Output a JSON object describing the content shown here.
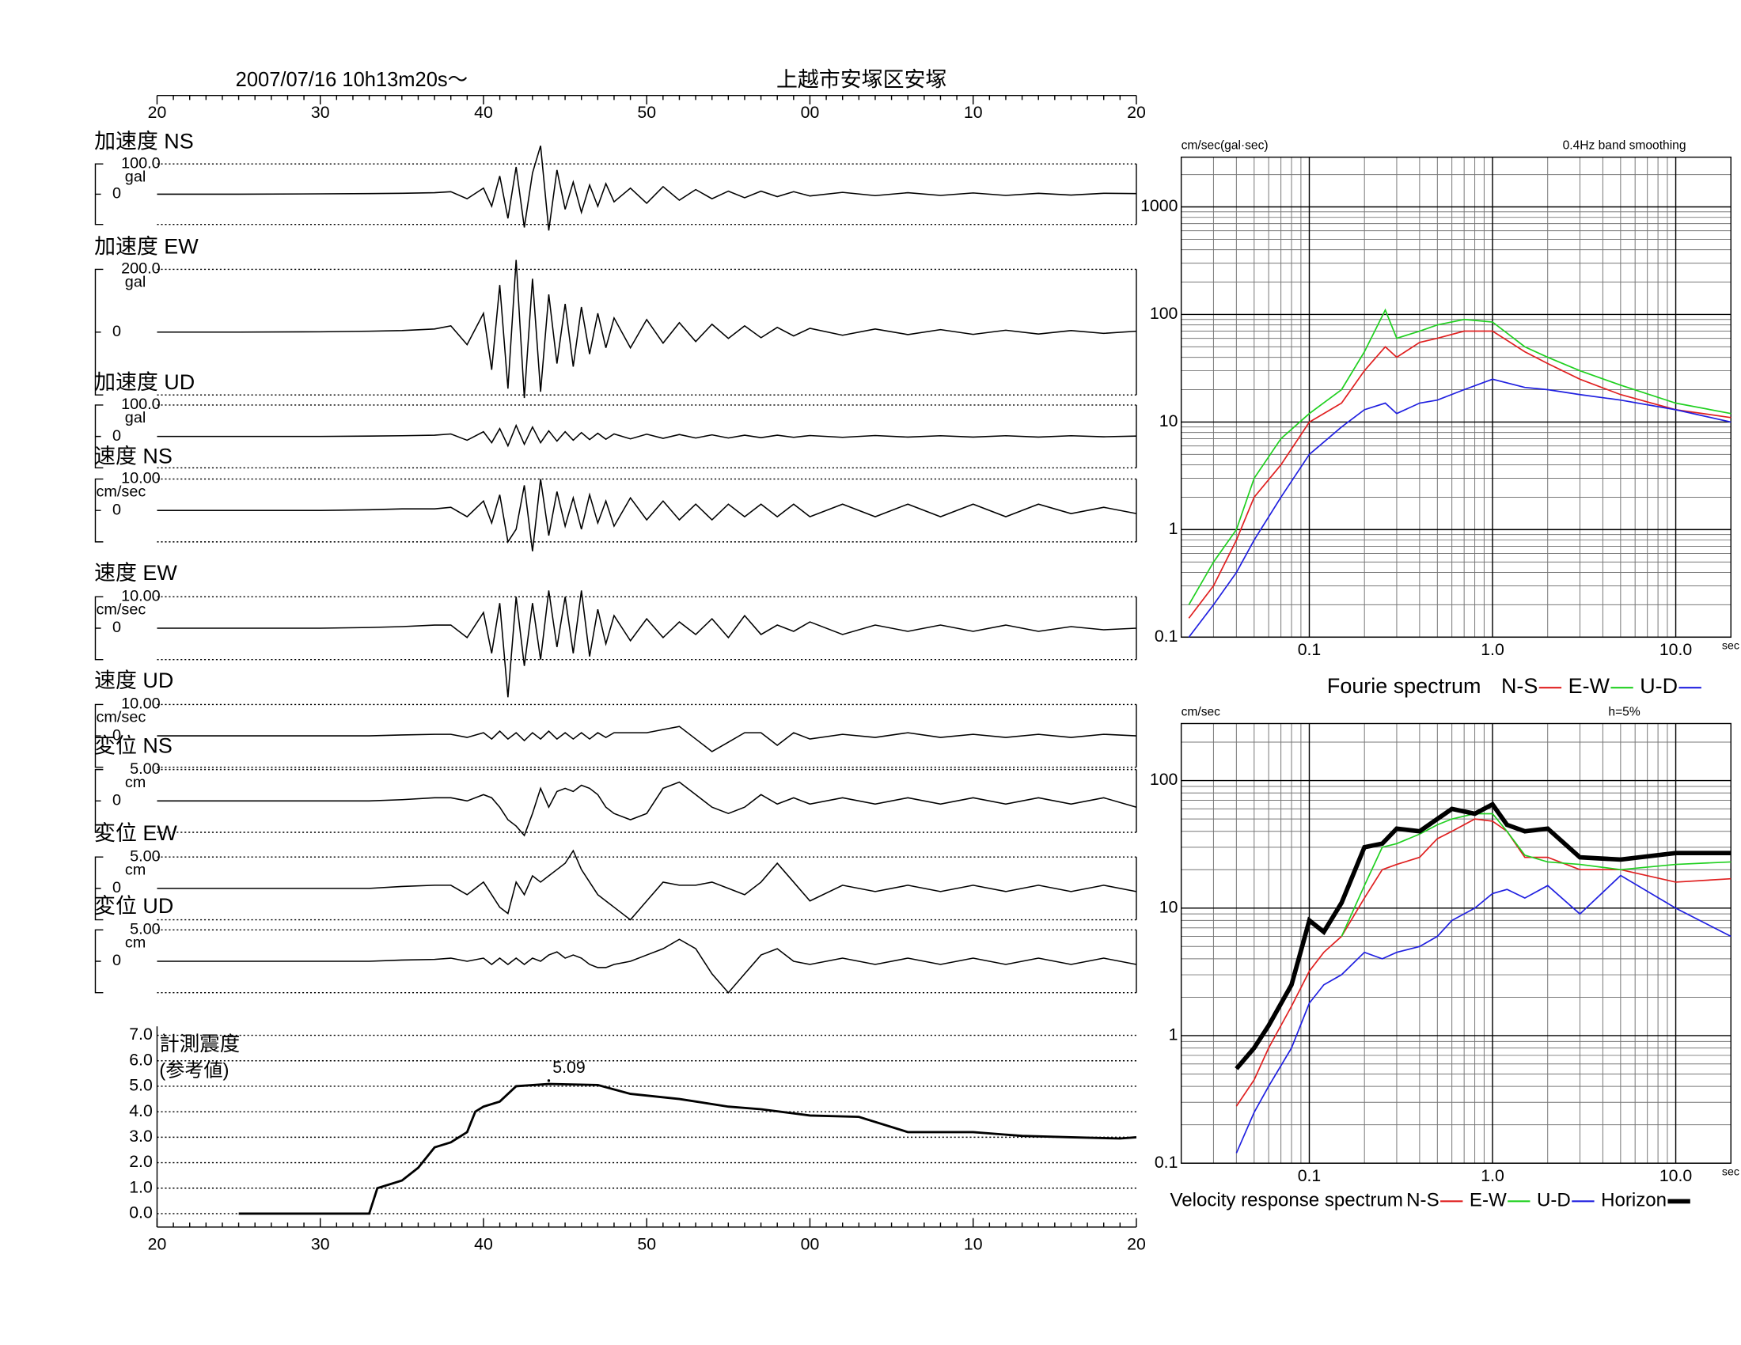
{
  "chart_data": [
    {
      "type": "waveform",
      "title": "上越市安塚区安塚",
      "subtitle": "2007/07/16  10h13m20s〜",
      "xlim": [
        20,
        80
      ],
      "xticks": [
        20,
        30,
        40,
        50,
        {
          "value": 60,
          "label": "00"
        },
        {
          "value": 70,
          "label": "10"
        },
        {
          "value": 80,
          "label": "20"
        }
      ],
      "x": [
        20,
        25,
        30,
        33,
        35,
        37,
        38,
        39,
        40,
        40.5,
        41,
        41.5,
        42,
        42.5,
        43,
        43.5,
        44,
        44.5,
        45,
        45.5,
        46,
        46.5,
        47,
        47.5,
        48,
        49,
        50,
        51,
        52,
        53,
        54,
        55,
        56,
        57,
        58,
        59,
        60,
        62,
        64,
        66,
        68,
        70,
        72,
        74,
        76,
        78,
        80
      ],
      "series": [
        {
          "name": "加速度 NS",
          "unit": "gal",
          "ylim": [
            -100,
            100
          ],
          "yticks": [
            {
              "value": 100,
              "label": "100.0"
            },
            0
          ],
          "values": [
            0,
            0,
            1,
            2,
            3,
            5,
            8,
            -15,
            20,
            -40,
            60,
            -80,
            90,
            -110,
            70,
            160,
            -120,
            80,
            -50,
            40,
            -60,
            30,
            -40,
            35,
            -25,
            20,
            -30,
            25,
            -20,
            15,
            -15,
            10,
            -12,
            10,
            -8,
            8,
            -6,
            6,
            -5,
            5,
            -4,
            4,
            -4,
            3,
            -3,
            3,
            2
          ]
        },
        {
          "name": "加速度 EW",
          "unit": "gal",
          "ylim": [
            -200,
            200
          ],
          "yticks": [
            {
              "value": 200,
              "label": "200.0"
            },
            0
          ],
          "values": [
            0,
            0,
            1,
            3,
            5,
            10,
            20,
            -40,
            60,
            -120,
            150,
            -180,
            230,
            -210,
            170,
            -190,
            120,
            -100,
            90,
            -110,
            80,
            -70,
            60,
            -50,
            45,
            -50,
            40,
            -35,
            30,
            -30,
            25,
            -20,
            20,
            -18,
            15,
            -12,
            12,
            -10,
            10,
            -8,
            8,
            -7,
            6,
            -6,
            5,
            -4,
            3
          ]
        },
        {
          "name": "加速度 UD",
          "unit": "gal",
          "ylim": [
            -100,
            100
          ],
          "yticks": [
            {
              "value": 100,
              "label": "100.0"
            },
            0
          ],
          "values": [
            0,
            0,
            0,
            1,
            2,
            4,
            8,
            -12,
            15,
            -20,
            25,
            -30,
            35,
            -25,
            30,
            -20,
            18,
            -15,
            15,
            -12,
            12,
            -10,
            10,
            -9,
            8,
            -8,
            7,
            -6,
            6,
            -5,
            5,
            -5,
            4,
            -4,
            4,
            -3,
            3,
            -3,
            3,
            -2,
            2,
            -2,
            2,
            -2,
            2,
            -1,
            1
          ]
        },
        {
          "name": "速度 NS",
          "unit": "cm/sec",
          "ylim": [
            -10,
            10
          ],
          "yticks": [
            {
              "value": 10,
              "label": "10.00"
            },
            0
          ],
          "values": [
            0,
            0,
            0,
            0.2,
            0.5,
            0.5,
            1,
            -2,
            3,
            -4,
            5,
            -10,
            -6,
            8,
            -13,
            10,
            -8,
            6,
            -5,
            4,
            -6,
            5,
            -4,
            3,
            -5,
            4,
            -3,
            3,
            -3,
            2,
            -3,
            2,
            -2,
            2,
            -2,
            2,
            -2,
            2,
            -2,
            2,
            -2,
            2,
            -2,
            2,
            -1,
            1,
            -1
          ]
        },
        {
          "name": "速度 EW",
          "unit": "cm/sec",
          "ylim": [
            -10,
            10
          ],
          "yticks": [
            {
              "value": 10,
              "label": "10.00"
            },
            0
          ],
          "values": [
            0,
            0,
            0,
            0.2,
            0.5,
            1,
            1,
            -3,
            5,
            -8,
            8,
            -22,
            10,
            -12,
            8,
            -10,
            12,
            -6,
            10,
            -8,
            12,
            -9,
            6,
            -5,
            4,
            -4,
            3,
            -3,
            2,
            -2,
            3,
            -3,
            4,
            -2,
            1,
            -1,
            2,
            -2,
            1,
            -1,
            1,
            -1,
            1,
            -1,
            0.5,
            -0.5,
            0
          ]
        },
        {
          "name": "速度 UD",
          "unit": "cm/sec",
          "ylim": [
            -10,
            10
          ],
          "yticks": [
            {
              "value": 10,
              "label": "10.00"
            },
            0
          ],
          "values": [
            0,
            0,
            0,
            0,
            0.3,
            0.5,
            0.5,
            -0.5,
            1,
            -1,
            1.5,
            -1,
            1,
            -1.5,
            1,
            -1,
            1.5,
            -1,
            1,
            -1,
            1,
            -1,
            1,
            -0.5,
            1,
            1,
            1,
            2,
            3,
            -1,
            -5,
            -2,
            1,
            1,
            -3,
            1,
            -1,
            0.5,
            -0.5,
            1,
            -0.5,
            0.5,
            -0.5,
            0.5,
            -0.5,
            0.5,
            0
          ]
        },
        {
          "name": "変位 NS",
          "unit": "cm",
          "ylim": [
            -5,
            5
          ],
          "yticks": [
            {
              "value": 5,
              "label": "5.00"
            },
            0
          ],
          "values": [
            0,
            0,
            0,
            0,
            0.2,
            0.5,
            0.5,
            0,
            1,
            0.5,
            -1,
            -3,
            -4,
            -5.5,
            -2,
            2,
            -1,
            1.5,
            2,
            1.5,
            2.5,
            2,
            1,
            -1,
            -2,
            -3,
            -2,
            2,
            3,
            1,
            -1,
            -2,
            -1,
            1,
            -0.5,
            0.5,
            -0.5,
            0.5,
            -0.5,
            0.5,
            -0.5,
            0.5,
            -0.5,
            0.5,
            -0.5,
            0.5,
            -1
          ]
        },
        {
          "name": "変位 EW",
          "unit": "cm",
          "ylim": [
            -5,
            5
          ],
          "yticks": [
            {
              "value": 5,
              "label": "5.00"
            },
            0
          ],
          "values": [
            0,
            0,
            0,
            0,
            0.3,
            0.5,
            0.5,
            -1,
            1,
            -1,
            -3,
            -4,
            1,
            -1,
            2,
            1,
            2,
            3,
            4,
            6,
            3,
            1,
            -1,
            -2,
            -3,
            -5,
            -2,
            1,
            0.5,
            0.5,
            1,
            0,
            -1,
            1,
            4,
            1,
            -2,
            0.5,
            -0.5,
            0.5,
            -0.5,
            0.5,
            -0.5,
            0.5,
            -0.5,
            0.5,
            -0.5
          ]
        },
        {
          "name": "変位 UD",
          "unit": "cm",
          "ylim": [
            -5,
            5
          ],
          "yticks": [
            {
              "value": 5,
              "label": "5.00"
            },
            0
          ],
          "values": [
            0,
            0,
            0,
            0,
            0.2,
            0.3,
            0.5,
            0,
            0.5,
            -0.5,
            0.5,
            -0.5,
            0.5,
            -0.5,
            0.5,
            0,
            1,
            1.5,
            0.5,
            1,
            0.5,
            -0.5,
            -1,
            -1,
            -0.5,
            0,
            1,
            2,
            3.5,
            2,
            -2,
            -5,
            -2,
            1,
            2,
            0,
            -0.5,
            0.5,
            -0.5,
            0.5,
            -0.5,
            0.5,
            -0.5,
            0.5,
            -0.5,
            0.5,
            -0.5
          ]
        }
      ]
    },
    {
      "type": "line",
      "title": "計測震度",
      "subtitle": "(参考値)",
      "color": "#000000",
      "xlim": [
        20,
        80
      ],
      "xticks": [
        20,
        30,
        40,
        50,
        {
          "value": 60,
          "label": "00"
        },
        {
          "value": 70,
          "label": "10"
        },
        {
          "value": 80,
          "label": "20"
        }
      ],
      "ylim": [
        0,
        7
      ],
      "yticks": [
        {
          "value": 0,
          "label": "0.0"
        },
        {
          "value": 1,
          "label": "1.0"
        },
        {
          "value": 2,
          "label": "2.0"
        },
        {
          "value": 3,
          "label": "3.0"
        },
        {
          "value": 4,
          "label": "4.0"
        },
        {
          "value": 5,
          "label": "5.0"
        },
        {
          "value": 6,
          "label": "6.0"
        },
        {
          "value": 7,
          "label": "7.0"
        }
      ],
      "grid": true,
      "x": [
        25,
        33,
        33.5,
        35,
        36,
        37,
        38,
        39,
        39.5,
        40,
        41,
        42,
        44,
        47,
        49,
        52,
        55,
        57,
        60,
        63,
        66,
        70,
        73,
        76,
        79,
        80
      ],
      "values": [
        0,
        0,
        1.0,
        1.3,
        1.8,
        2.6,
        2.8,
        3.2,
        4.0,
        4.2,
        4.4,
        5.0,
        5.09,
        5.05,
        4.7,
        4.5,
        4.2,
        4.1,
        3.85,
        3.8,
        3.2,
        3.2,
        3.05,
        3.0,
        2.95,
        3.0
      ],
      "annotations": [
        {
          "text": "5.09",
          "x": 44,
          "y": 5.09
        }
      ]
    },
    {
      "type": "loglog",
      "title": "Fourie spectrum",
      "ylabel": "cm/sec(gal·sec)",
      "note": "0.4Hz band smoothing",
      "xlabel": "sec",
      "log_x": true,
      "log_y": true,
      "grid": true,
      "xlim": [
        0.02,
        20
      ],
      "xticks": [
        0.1,
        {
          "value": 1,
          "label": "1.0"
        },
        {
          "value": 10,
          "label": "10.0"
        }
      ],
      "ylim": [
        0.1,
        2900
      ],
      "yticks": [
        0.1,
        1,
        10,
        100,
        1000
      ],
      "x": [
        0.022,
        0.03,
        0.04,
        0.05,
        0.07,
        0.1,
        0.15,
        0.2,
        0.26,
        0.3,
        0.4,
        0.5,
        0.7,
        1.0,
        1.5,
        2,
        3,
        5,
        10,
        20
      ],
      "series": [
        {
          "name": "N-S",
          "color": "#e02020",
          "values": [
            0.15,
            0.3,
            0.8,
            2,
            4,
            10,
            15,
            30,
            50,
            40,
            55,
            60,
            70,
            70,
            45,
            35,
            25,
            18,
            13,
            11
          ]
        },
        {
          "name": "E-W",
          "color": "#20d020",
          "values": [
            0.2,
            0.5,
            1,
            3,
            7,
            12,
            20,
            45,
            110,
            60,
            70,
            80,
            90,
            85,
            50,
            40,
            30,
            22,
            15,
            12
          ]
        },
        {
          "name": "U-D",
          "color": "#2020e0",
          "values": [
            0.1,
            0.2,
            0.4,
            0.8,
            2,
            5,
            9,
            13,
            15,
            12,
            15,
            16,
            20,
            25,
            21,
            20,
            18,
            16,
            13,
            10
          ]
        }
      ]
    },
    {
      "type": "loglog",
      "title": "Velocity response spectrum",
      "ylabel": "cm/sec",
      "note": "h=5%",
      "xlabel": "sec",
      "log_x": true,
      "log_y": true,
      "grid": true,
      "xlim": [
        0.02,
        20
      ],
      "xticks": [
        0.1,
        {
          "value": 1,
          "label": "1.0"
        },
        {
          "value": 10,
          "label": "10.0"
        }
      ],
      "ylim": [
        0.1,
        280
      ],
      "yticks": [
        0.1,
        1,
        10,
        100
      ],
      "x": [
        0.04,
        0.05,
        0.06,
        0.08,
        0.1,
        0.12,
        0.15,
        0.2,
        0.25,
        0.3,
        0.4,
        0.5,
        0.6,
        0.8,
        1.0,
        1.2,
        1.5,
        2,
        3,
        5,
        10,
        20
      ],
      "series": [
        {
          "name": "N-S",
          "color": "#e02020",
          "values": [
            0.28,
            0.45,
            0.8,
            1.7,
            3.2,
            4.5,
            6,
            12,
            20,
            22,
            25,
            35,
            40,
            50,
            48,
            40,
            25,
            25,
            20,
            20,
            16,
            17
          ]
        },
        {
          "name": "E-W",
          "color": "#20d020",
          "values": [
            null,
            null,
            null,
            null,
            null,
            null,
            6,
            15,
            30,
            32,
            38,
            45,
            50,
            55,
            55,
            40,
            26,
            23,
            22,
            20,
            22,
            23
          ]
        },
        {
          "name": "U-D",
          "color": "#2020e0",
          "values": [
            0.12,
            0.25,
            0.4,
            0.8,
            1.8,
            2.5,
            3,
            4.5,
            4,
            4.5,
            5,
            6,
            8,
            10,
            13,
            14,
            12,
            15,
            9,
            18,
            10,
            6
          ]
        },
        {
          "name": "Horizon",
          "color": "#000000",
          "line_width": 4,
          "values": [
            0.55,
            0.8,
            1.2,
            2.5,
            8,
            6.5,
            11,
            30,
            32,
            42,
            40,
            50,
            60,
            55,
            65,
            45,
            40,
            42,
            25,
            24,
            27,
            27
          ]
        }
      ]
    }
  ]
}
